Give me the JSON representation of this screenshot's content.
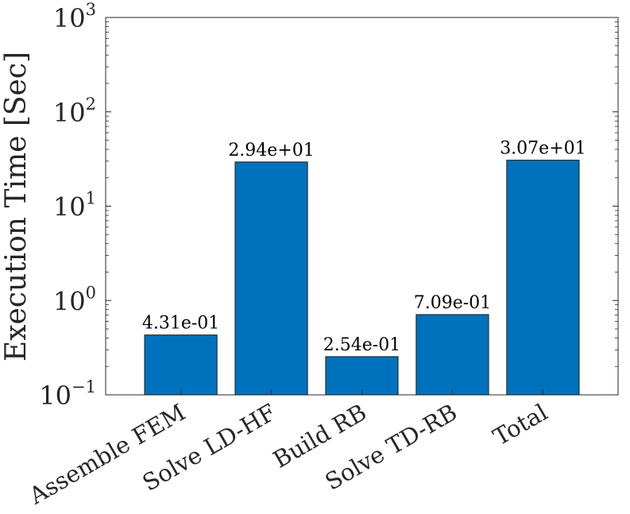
{
  "chart_data": {
    "type": "bar",
    "ylabel": "Execution Time [Sec]",
    "yscale": "log",
    "ylim": [
      0.1,
      1000
    ],
    "yticks": [
      0.1,
      1,
      10,
      100,
      1000
    ],
    "ytick_labels": [
      {
        "base": "10",
        "exp": "−1"
      },
      {
        "base": "10",
        "exp": "0"
      },
      {
        "base": "10",
        "exp": "1"
      },
      {
        "base": "10",
        "exp": "2"
      },
      {
        "base": "10",
        "exp": "3"
      }
    ],
    "categories": [
      "Assemble FEM",
      "Solve LD-HF",
      "Build RB",
      "Solve TD-RB",
      "Total"
    ],
    "values": [
      0.431,
      29.4,
      0.254,
      0.709,
      30.7
    ],
    "data_labels": [
      "4.31e-01",
      "2.94e+01",
      "2.54e-01",
      "7.09e-01",
      "3.07e+01"
    ],
    "bar_color": "#0072BD",
    "grid": false
  }
}
